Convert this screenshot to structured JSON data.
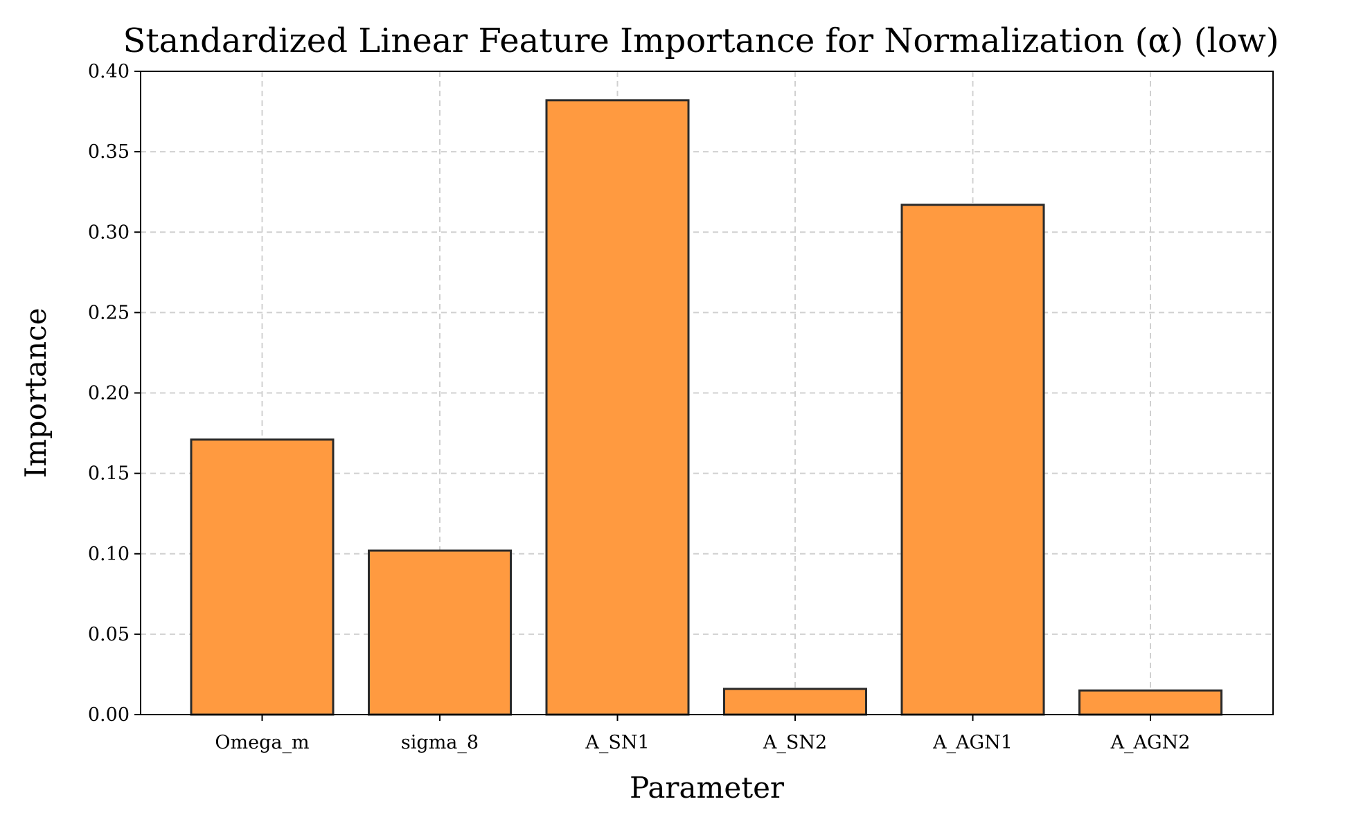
{
  "chart_data": {
    "type": "bar",
    "title": "Standardized Linear Feature Importance for Normalization (α) (low)",
    "xlabel": "Parameter",
    "ylabel": "Importance",
    "categories": [
      "Omega_m",
      "sigma_8",
      "A_SN1",
      "A_SN2",
      "A_AGN1",
      "A_AGN2"
    ],
    "values": [
      0.171,
      0.102,
      0.382,
      0.016,
      0.317,
      0.015
    ],
    "ylim": [
      0,
      0.4
    ],
    "yticks": [
      "0.00",
      "0.05",
      "0.10",
      "0.15",
      "0.20",
      "0.25",
      "0.30",
      "0.35",
      "0.40"
    ],
    "grid": true,
    "bar_color": "#ff9a40",
    "bar_edge_color": "#2a2a2a"
  }
}
